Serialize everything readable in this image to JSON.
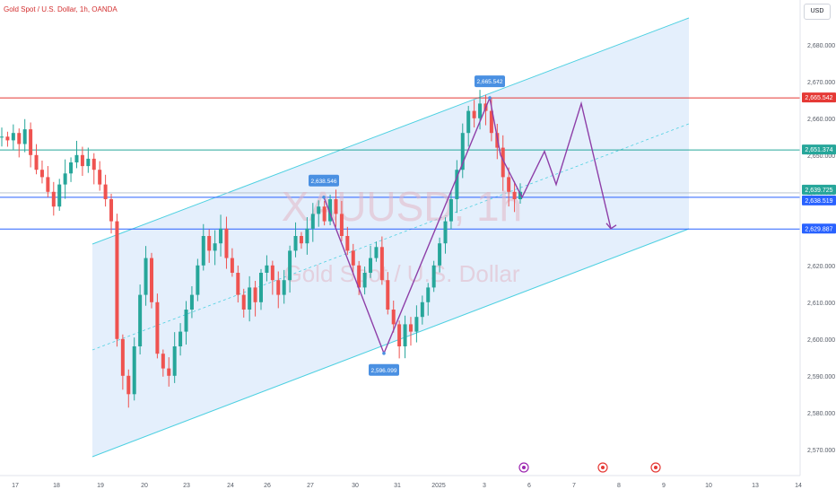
{
  "header": {
    "title": "Gold Spot / U.S. Dollar, 1h, OANDA",
    "currency": "USD"
  },
  "watermark": {
    "symbol": "XAUUSD, 1h",
    "name": "Gold Spot / U.S. Dollar"
  },
  "colors": {
    "bull": "#26a69a",
    "bear": "#ef5350",
    "channel": "#4dd0e1",
    "channel_fill": "#dbe9fb",
    "path": "#8e3fa8",
    "resistance": "#e53935",
    "support_blue": "#2962ff",
    "teal_line": "#26a69a",
    "callout": "#4a90e2"
  },
  "chart_data": {
    "type": "line",
    "instrument": "Gold Spot / U.S. Dollar",
    "timeframe": "1h",
    "ylim": [
      2565,
      2690
    ],
    "x_ticks": [
      "17",
      "18",
      "19",
      "20",
      "23",
      "24",
      "26",
      "27",
      "30",
      "31",
      "2025",
      "3",
      "6",
      "7",
      "8",
      "9",
      "10",
      "13",
      "14"
    ],
    "y_ticks": [
      "2,680.000",
      "2,670.000",
      "2,660.000",
      "2,650.000",
      "2,640.000",
      "2,630.000",
      "2,620.000",
      "2,610.000",
      "2,600.000",
      "2,590.000",
      "2,580.000",
      "2,570.000"
    ],
    "price_lines": [
      {
        "label": "2,665.542",
        "value": 2665.542,
        "kind": "resistance"
      },
      {
        "label": "2,651.374",
        "value": 2651.374,
        "kind": "teal"
      },
      {
        "label": "2,639.725",
        "value": 2639.725,
        "kind": "last"
      },
      {
        "label": "2,638.519",
        "value": 2638.519,
        "kind": "support"
      },
      {
        "label": "2,629.887",
        "value": 2629.887,
        "kind": "support"
      }
    ],
    "callouts": [
      {
        "label": "2,638.546",
        "value": 2638.546
      },
      {
        "label": "2,596.099",
        "value": 2596.099
      },
      {
        "label": "2,665.542",
        "value": 2665.542
      }
    ],
    "series": [
      {
        "values": [
          2655,
          2654,
          2656,
          2653,
          2657,
          2650,
          2646,
          2644,
          2640,
          2636,
          2642,
          2645,
          2648,
          2650,
          2647,
          2649,
          2646,
          2642,
          2638,
          2632,
          2600,
          2590,
          2585,
          2598,
          2612,
          2622,
          2610,
          2596,
          2592,
          2590,
          2598,
          2602,
          2608,
          2612,
          2620,
          2628,
          2624,
          2626,
          2630,
          2622,
          2618,
          2612,
          2608,
          2614,
          2610,
          2618,
          2620,
          2616,
          2612,
          2616,
          2624,
          2628,
          2626,
          2630,
          2634,
          2636,
          2632,
          2638,
          2634,
          2628,
          2624,
          2620,
          2614,
          2618,
          2622,
          2625,
          2616,
          2608,
          2604,
          2598,
          2604,
          2602,
          2606,
          2610,
          2614,
          2620,
          2626,
          2632,
          2638,
          2646,
          2656,
          2662,
          2660,
          2664,
          2662,
          2656,
          2652,
          2644,
          2640,
          2638,
          2640
        ]
      }
    ],
    "projection": [
      2640,
      2650,
      2644,
      2662,
      2630
    ]
  }
}
